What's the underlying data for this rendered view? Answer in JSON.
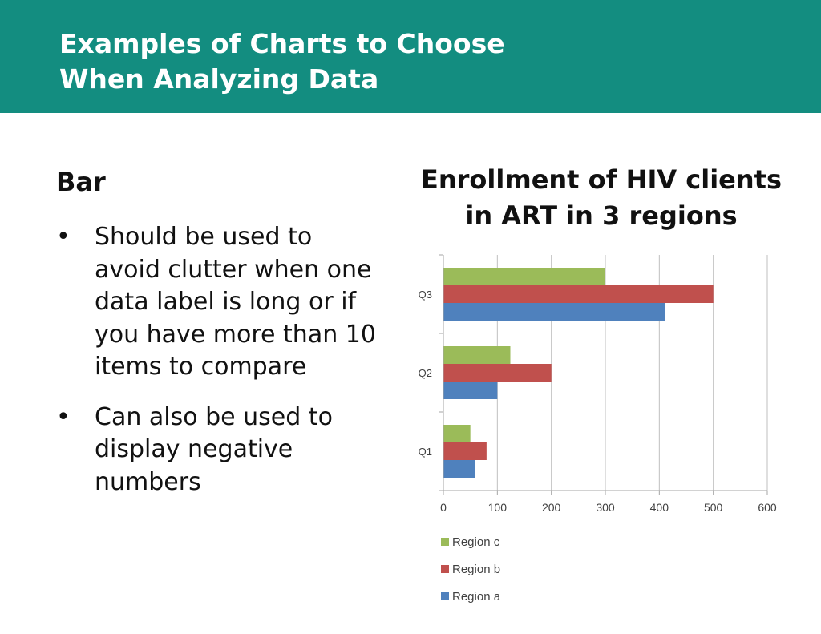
{
  "slide": {
    "title_line1": "Examples of Charts to Choose",
    "title_line2": "When Analyzing Data",
    "section_heading": "Bar",
    "bullets": [
      "Should be used to avoid clutter when one data label is long or if you have more than 10 items to compare",
      "Can also be used to display negative numbers"
    ],
    "header_color": "#138d80"
  },
  "chart_data": {
    "type": "bar",
    "orientation": "horizontal",
    "title_line1": "Enrollment of HIV clients",
    "title_line2": "in ART in 3 regions",
    "categories": [
      "Q1",
      "Q2",
      "Q3"
    ],
    "series": [
      {
        "name": "Region a",
        "color": "#4f81bd",
        "values": [
          58,
          100,
          410
        ]
      },
      {
        "name": "Region b",
        "color": "#c0504d",
        "values": [
          80,
          200,
          500
        ]
      },
      {
        "name": "Region c",
        "color": "#9bbb59",
        "values": [
          50,
          124,
          300
        ]
      }
    ],
    "legend_order": [
      "Region c",
      "Region b",
      "Region a"
    ],
    "xlim": [
      0,
      600
    ],
    "xticks": [
      0,
      100,
      200,
      300,
      400,
      500,
      600
    ],
    "grid": "vertical",
    "legend_position": "bottom"
  }
}
